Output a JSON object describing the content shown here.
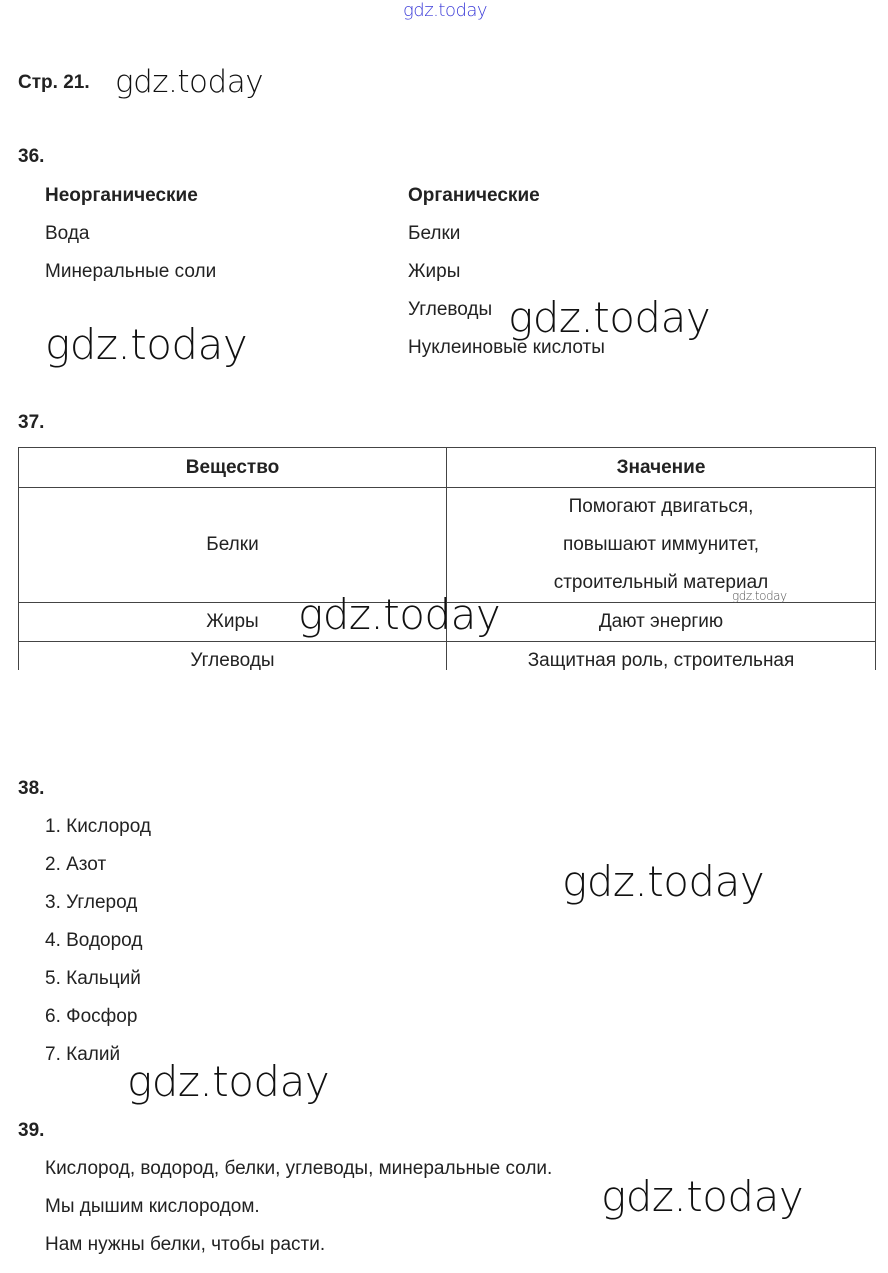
{
  "watermark": "gdz.today",
  "watermark_color_top": "#3a3ad8",
  "page_title": "Стр. 21.",
  "q36": {
    "number": "36.",
    "col1_title": "Неорганические",
    "col1_items": [
      "Вода",
      "Минеральные соли"
    ],
    "col2_title": "Органические",
    "col2_items": [
      "Белки",
      "Жиры",
      "Углеводы",
      "Нуклеиновые кислоты"
    ]
  },
  "q37": {
    "number": "37.",
    "headers": [
      "Вещество",
      "Значение"
    ],
    "rows": [
      {
        "substance": "Белки",
        "meaning": [
          "Помогают двигаться,",
          "повышают иммунитет,",
          "строительный материал"
        ]
      },
      {
        "substance": "Жиры",
        "meaning": [
          "Дают энергию"
        ]
      },
      {
        "substance": "Углеводы",
        "meaning": [
          "Защитная роль, строительная"
        ]
      }
    ]
  },
  "q38": {
    "number": "38.",
    "items": [
      "1. Кислород",
      "2. Азот",
      "3. Углерод",
      "4. Водород",
      "5. Кальций",
      "6. Фосфор",
      "7. Калий"
    ]
  },
  "q39": {
    "number": "39.",
    "lines": [
      "Кислород, водород, белки, углеводы, минеральные соли.",
      "Мы дышим кислородом.",
      "Нам нужны белки, чтобы расти."
    ]
  }
}
